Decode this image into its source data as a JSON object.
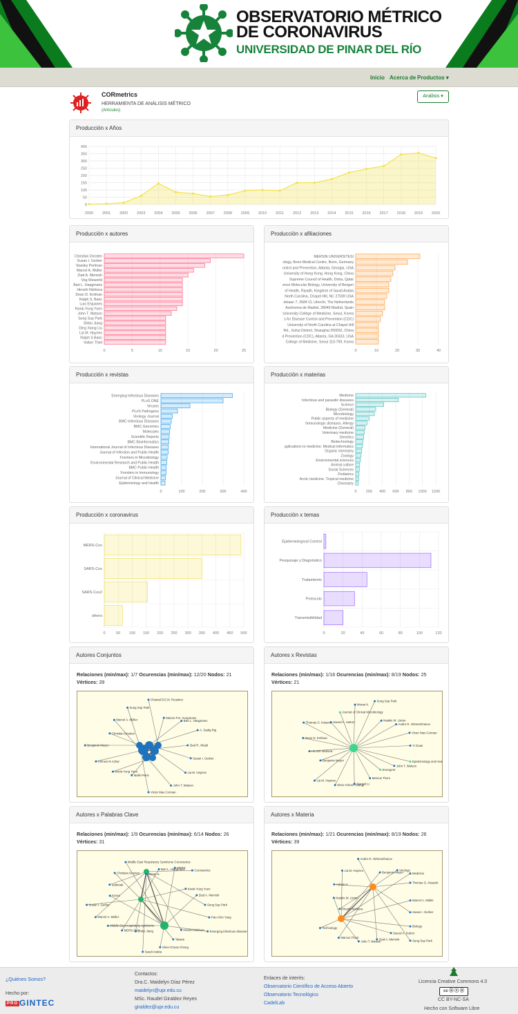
{
  "banner": {
    "line1": "OBSERVATORIO MÉTRICO",
    "line2": "DE CORONAVIRUS",
    "line3": "UNIVERSIDAD DE PINAR DEL RÍO"
  },
  "nav": {
    "items": [
      "Inicio",
      "Acerca de",
      "Productos ▾"
    ]
  },
  "app": {
    "name": "CORmetrics",
    "subtitle": "HERRAMIENTA DE ANÁLISIS MÉTRICO",
    "mode": "(Artículos)",
    "analysis_button": "Análisis ▾"
  },
  "colors": {
    "green": "#1b7a2e",
    "pink": "#ff6384",
    "orange": "#ff9f40",
    "blue": "#36a2eb",
    "teal": "#4bc0c0",
    "yellow": "#f2e14c",
    "purple": "#9966ff"
  },
  "cards": {
    "years": "Producción x Años",
    "authors": "Producción x autores",
    "affiliations": "Producción x afiliaciones",
    "journals": "Producción x revistas",
    "subjects": "Producción x materias",
    "coronavirus": "Producción x coronavirus",
    "topics": "Producción x temas",
    "net1": "Autores Conjuntos",
    "net2": "Autores x Revistas",
    "net3": "Autores x Palabras Clave",
    "net4": "Autores x Materia"
  },
  "netlabels": {
    "rel": "Relaciones (min/max):",
    "occ": "Ocurencias (min/max):",
    "nodes": "Nodos:",
    "vert": "Vértices:"
  },
  "networks": [
    {
      "rel": "1/7",
      "occ": "12/20",
      "nodes": "21",
      "vert": "39",
      "labels": [
        "Ziad R. Alkadi",
        "Susan I. Gerber",
        "Lia M. Haynes",
        "John T. Watson",
        "Victor Max Corman",
        "Malik Peiris",
        "Kwok-Yung Yuen",
        "Ahmed Al-Azhar",
        "Benjamin Meyer",
        "Christian Drosten",
        "Marcel A. Müller",
        "Sung Sup Park",
        "Chantal B.E.M. Reusken",
        "Marion P.G. Koopmans",
        "Bart L. Haagmans",
        "A. Sadiq-Raj"
      ]
    },
    {
      "rel": "1/16",
      "occ": "8/19",
      "nodes": "25",
      "vert": "21",
      "labels": [
        "Emergent",
        "Marcus Thom",
        "Xiangdi Li",
        "Shen-Cheeri Cheng",
        "Lia M. Haynes",
        "Benjamin Meyer",
        "Hiroshi Nishiura",
        "Dean D. Erdman",
        "Thomas G. Ksiazek",
        "Saeed A. Sutton",
        "Journal of Clinical Microbiology",
        "Moran K.",
        "Sung Sup Park",
        "Natalie M. Linton",
        "Andre R. Akhmetzhanov",
        "Victor Max Corman",
        "Yi Guan",
        "Epidemiology and Health",
        "John T. Watson"
      ]
    },
    {
      "rel": "1/9",
      "occ": "6/14",
      "nodes": "26",
      "vert": "31",
      "labels": [
        "Shibo Jiang",
        "MERS-CoV",
        "Middle East respiratory syndrome",
        "Marcel A. Müller",
        "Susan I. Gerber",
        "Korea",
        "outbreak",
        "Christian Drosten",
        "Middle East Respiratory Syndrome Coronavirus",
        "Moran K.",
        "Bart L. Haagmans",
        "MERS",
        "Coronavirus",
        "Kwok-Yung Yuen",
        "Ziad A. Memish",
        "Sung Sup Park",
        "Pan-Chin Yang",
        "Emerging infectious diseases",
        "Hiroshi Nishiura",
        "Taiwan",
        "Shen-Chean Cheng",
        "Saudi Arabia"
      ]
    },
    {
      "rel": "1/21",
      "occ": "8/19",
      "nodes": "26",
      "vert": "39",
      "labels": [
        "Hiroshi Nishiura",
        "Natalie M. Linton",
        "Adrian H.",
        "Lia M. Haynes",
        "Andre R. Akhmetzhanov",
        "Benjamin Meyer",
        "Virology",
        "Medicine",
        "Thomas G. Ksiazek",
        "Marcel A. Müller",
        "Susan I. Gerber",
        "Biology",
        "Sung Sup Park",
        "Saeed A. Sutton",
        "Ziad A. Memish",
        "John T. Watson",
        "Marcus Thom",
        "Technology"
      ]
    }
  ],
  "footer": {
    "who": "¿Quiénes Somos?",
    "made": "Hecho por:",
    "maker": "GINTEC",
    "maker_prefix": "PRO",
    "contacts_title": "Contactos:",
    "c1": "Dra.C. Maidelyn Díaz Pérez",
    "c1mail": "maidelyn@upr.edu.cu",
    "c2": "MSc. Raudel Giraldez Reyes",
    "c2mail": "giraldez@upr.edu.cu",
    "links_title": "Enlaces de interés:",
    "l1": "Observatorio Científico de Acceso Abierto",
    "l2": "Observatorio Tecnológico",
    "l3": "CadelLab",
    "license": "Licencia Creative Commons 4.0",
    "cc": "CC BY-NC-SA",
    "free": "Hecho con Software Libre"
  },
  "chart_data": [
    {
      "type": "area",
      "title": "Producción x Años",
      "x": [
        2000,
        2001,
        2002,
        2003,
        2004,
        2005,
        2006,
        2007,
        2008,
        2009,
        2010,
        2011,
        2012,
        2013,
        2014,
        2015,
        2016,
        2017,
        2018,
        2019,
        2020
      ],
      "values": [
        2,
        5,
        12,
        60,
        145,
        85,
        75,
        55,
        65,
        95,
        100,
        95,
        150,
        150,
        175,
        220,
        245,
        265,
        345,
        355,
        320
      ],
      "ylim": [
        0,
        400
      ],
      "yticks": [
        0,
        50,
        100,
        150,
        200,
        250,
        300,
        350,
        400
      ]
    },
    {
      "type": "bar",
      "orientation": "horizontal",
      "title": "Producción x autores",
      "categories": [
        "Christian Drosten",
        "Susan I. Gerber",
        "Stanley Perlman",
        "Marcel A. Müller",
        "Ziad A. Memish",
        "Veg Wewerbi",
        "Bart L. Haagmans",
        "Hiroshi Nishiura",
        "Dean D. Erdman",
        "Ralph S. Baric",
        "Luis Enjuanes",
        "Kwok-Yung Yuen",
        "John T. Watson",
        "Sung Sup Park",
        "Shibo Jiang",
        "Ding Xiang Liu",
        "Lia M. Haynes",
        "Ralph S Baric",
        "Volker Thiel"
      ],
      "values": [
        25,
        19,
        18,
        16,
        15,
        14,
        14,
        14,
        14,
        14,
        14,
        13,
        12,
        11,
        11,
        11,
        11,
        11,
        11
      ],
      "xlim": [
        0,
        25
      ],
      "xticks": [
        0,
        5,
        10,
        15,
        20,
        25
      ]
    },
    {
      "type": "bar",
      "orientation": "horizontal",
      "title": "Producción x afiliaciones",
      "categories": [
        "MERSIN UNIVERSITESI",
        "ology, Bonn Medical Centre, Bonn, Germany",
        "ontrol and Prevention, Atlanta, Georgia, USA",
        "University of Hong Kong, Hong Kong, China",
        "Supreme Council of Health, Doha, Qatar",
        "ence Molecular Biology, University of Bergen",
        "of Health, Riyadh, Kingdom of Saudi Arabia",
        "North Carolina, Chapel Hill, NC 27599 USA",
        "delaan 7, 3584 CL Utrecht, The Netherlands",
        "Autónoma de Madrid, 28049 Madrid, Spain",
        "University College of Medicine, Seoul, Korea",
        "s for Disease Control and Prevention (CDC)",
        "University of North Carolina at Chapel Hill",
        "Rd., Xuhui District, Shanghai 200032, China",
        "d Prevention (CDC), Atlanta, GA 30333, USA",
        "College of Medicine, Seoul 110-799, Korea"
      ],
      "values": [
        31,
        25,
        19,
        18,
        17,
        16,
        16,
        15,
        14,
        14,
        13,
        12,
        11,
        11,
        11,
        11
      ],
      "xlim": [
        0,
        40
      ],
      "xticks": [
        0,
        10,
        20,
        30,
        40
      ]
    },
    {
      "type": "bar",
      "orientation": "horizontal",
      "title": "Producción x revistas",
      "categories": [
        "Emerging Infectious Diseases",
        "PLoS ONE",
        "Viruses",
        "PLoS Pathogens",
        "Virology Journal",
        "BMC Infectious Diseases",
        "BMC Genomics",
        "Molecules",
        "Scientific Reports",
        "BMC Bioinformatics",
        "International Journal of Infectious Diseases",
        "Journal of Infection and Public Health",
        "Frontiers in Microbiology",
        "Environmental Research and Public Health",
        "BMC Public Health",
        "Frontiers in Immunology",
        "Journal of Clinical Medicine",
        "Epidemiology and Health"
      ],
      "values": [
        345,
        300,
        140,
        80,
        55,
        50,
        45,
        42,
        40,
        38,
        36,
        35,
        30,
        28,
        26,
        25,
        22,
        20
      ],
      "xlim": [
        0,
        400
      ],
      "xticks": [
        0,
        100,
        200,
        300,
        400
      ]
    },
    {
      "type": "bar",
      "orientation": "horizontal",
      "title": "Producción x materias",
      "categories": [
        "Medicine",
        "Infectious and parasitic diseases",
        "Science",
        "Biology (General)",
        "Microbiology",
        "Public aspects of medicine",
        "Immunologic diseases. Allergy",
        "Medicine (General)",
        "Veterinary medicine",
        "Genetics",
        "Biotechnology",
        "pplications to medicine. Medical informatics",
        "Organic chemistry",
        "Zoology",
        "Environmental sciences",
        "Animal culture",
        "Social Sciences",
        "Pediatrics",
        "Arctic medicine. Tropical medicine",
        "Chemistry"
      ],
      "values": [
        1050,
        640,
        420,
        300,
        280,
        200,
        170,
        140,
        130,
        120,
        110,
        100,
        90,
        80,
        70,
        60,
        55,
        50,
        45,
        40
      ],
      "xlim": [
        0,
        1200
      ],
      "xticks": [
        0,
        200,
        400,
        600,
        800,
        1000,
        1200
      ]
    },
    {
      "type": "bar",
      "orientation": "horizontal",
      "title": "Producción x coronavirus",
      "categories": [
        "MERS-Cov",
        "SARS-Cov",
        "SARS-Cov2",
        "others"
      ],
      "values": [
        490,
        350,
        155,
        65
      ],
      "xlim": [
        0,
        500
      ],
      "xticks": [
        0,
        50,
        100,
        150,
        200,
        250,
        300,
        350,
        400,
        450,
        500
      ]
    },
    {
      "type": "bar",
      "orientation": "horizontal",
      "title": "Producción x temas",
      "categories": [
        "Epidemiological Control",
        "Pesquisaje y Diagnóstico",
        "Tratamiento",
        "Protocolo",
        "Transmisibilidad"
      ],
      "values": [
        2,
        112,
        45,
        32,
        20
      ],
      "xlim": [
        0,
        120
      ],
      "xticks": [
        0,
        20,
        40,
        60,
        80,
        100,
        120
      ]
    }
  ]
}
